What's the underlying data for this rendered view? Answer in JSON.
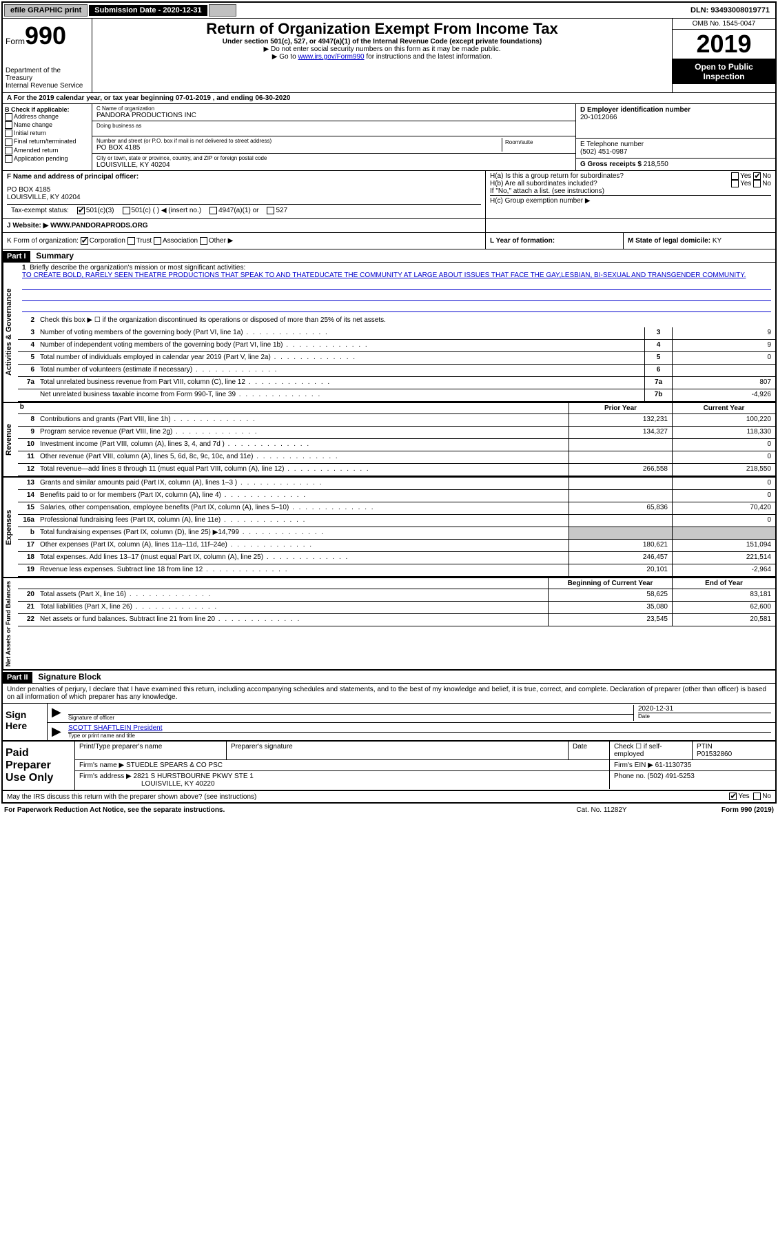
{
  "topbar": {
    "efile": "efile GRAPHIC print",
    "submission_label": "Submission Date - 2020-12-31",
    "dln": "DLN: 93493008019771"
  },
  "header": {
    "form_label": "Form",
    "form_num": "990",
    "dept": "Department of the Treasury\nInternal Revenue Service",
    "title": "Return of Organization Exempt From Income Tax",
    "subtitle": "Under section 501(c), 527, or 4947(a)(1) of the Internal Revenue Code (except private foundations)",
    "note1": "▶ Do not enter social security numbers on this form as it may be made public.",
    "note2_pre": "▶ Go to ",
    "note2_link": "www.irs.gov/Form990",
    "note2_post": " for instructions and the latest information.",
    "omb": "OMB No. 1545-0047",
    "year": "2019",
    "open": "Open to Public Inspection"
  },
  "period": "A For the 2019 calendar year, or tax year beginning 07-01-2019    , and ending 06-30-2020",
  "blockB": {
    "heading": "B Check if applicable:",
    "opts": [
      "Address change",
      "Name change",
      "Initial return",
      "Final return/terminated",
      "Amended return",
      "Application pending"
    ]
  },
  "blockC": {
    "name_lbl": "C Name of organization",
    "name": "PANDORA PRODUCTIONS INC",
    "dba_lbl": "Doing business as",
    "dba": "",
    "addr_lbl": "Number and street (or P.O. box if mail is not delivered to street address)",
    "addr": "PO BOX 4185",
    "room_lbl": "Room/suite",
    "city_lbl": "City or town, state or province, country, and ZIP or foreign postal code",
    "city": "LOUISVILLE, KY  40204"
  },
  "blockD": {
    "lbl": "D Employer identification number",
    "val": "20-1012066"
  },
  "blockE": {
    "lbl": "E Telephone number",
    "val": "(502) 451-0987"
  },
  "blockG": {
    "lbl": "G Gross receipts $",
    "val": "218,550"
  },
  "blockF": {
    "lbl": "F  Name and address of principal officer:",
    "line1": "PO BOX 4185",
    "line2": "LOUISVILLE, KY  40204"
  },
  "blockH": {
    "a": "H(a)  Is this a group return for subordinates?",
    "b": "H(b)  Are all subordinates included?",
    "ifno": "If \"No,\" attach a list. (see instructions)",
    "c": "H(c)  Group exemption number ▶"
  },
  "tax_status": {
    "lbl": "Tax-exempt status:",
    "o1": "501(c)(3)",
    "o2": "501(c) (  ) ◀ (insert no.)",
    "o3": "4947(a)(1) or",
    "o4": "527"
  },
  "blockJ": {
    "lbl": "J    Website: ▶",
    "val": "WWW.PANDORAPRODS.ORG"
  },
  "blockK": {
    "lbl": "K Form of organization:",
    "o1": "Corporation",
    "o2": "Trust",
    "o3": "Association",
    "o4": "Other ▶",
    "l_lbl": "L Year of formation:",
    "l_val": "",
    "m_lbl": "M State of legal domicile:",
    "m_val": "KY"
  },
  "part1": {
    "hdr": "Part I",
    "title": "Summary",
    "l1_lbl": "Briefly describe the organization's mission or most significant activities:",
    "l1_txt": "TO CREATE BOLD, RARELY SEEN THEATRE PRODUCTIONS THAT SPEAK TO AND THATEDUCATE THE COMMUNITY AT LARGE ABOUT ISSUES THAT FACE THE GAY,LESBIAN, BI-SEXUAL AND TRANSGENDER COMMUNITY.",
    "l2": "Check this box ▶ ☐  if the organization discontinued its operations or disposed of more than 25% of its net assets.",
    "rows_gov": [
      {
        "n": "3",
        "d": "Number of voting members of the governing body (Part VI, line 1a)",
        "box": "3",
        "v": "9"
      },
      {
        "n": "4",
        "d": "Number of independent voting members of the governing body (Part VI, line 1b)",
        "box": "4",
        "v": "9"
      },
      {
        "n": "5",
        "d": "Total number of individuals employed in calendar year 2019 (Part V, line 2a)",
        "box": "5",
        "v": "0"
      },
      {
        "n": "6",
        "d": "Total number of volunteers (estimate if necessary)",
        "box": "6",
        "v": ""
      },
      {
        "n": "7a",
        "d": "Total unrelated business revenue from Part VIII, column (C), line 12",
        "box": "7a",
        "v": "807"
      },
      {
        "n": "",
        "d": "Net unrelated business taxable income from Form 990-T, line 39",
        "box": "7b",
        "v": "-4,926"
      }
    ],
    "col_prior": "Prior Year",
    "col_curr": "Current Year",
    "rows_rev": [
      {
        "n": "8",
        "d": "Contributions and grants (Part VIII, line 1h)",
        "p": "132,231",
        "c": "100,220"
      },
      {
        "n": "9",
        "d": "Program service revenue (Part VIII, line 2g)",
        "p": "134,327",
        "c": "118,330"
      },
      {
        "n": "10",
        "d": "Investment income (Part VIII, column (A), lines 3, 4, and 7d )",
        "p": "",
        "c": "0"
      },
      {
        "n": "11",
        "d": "Other revenue (Part VIII, column (A), lines 5, 6d, 8c, 9c, 10c, and 11e)",
        "p": "",
        "c": "0"
      },
      {
        "n": "12",
        "d": "Total revenue—add lines 8 through 11 (must equal Part VIII, column (A), line 12)",
        "p": "266,558",
        "c": "218,550"
      }
    ],
    "rows_exp": [
      {
        "n": "13",
        "d": "Grants and similar amounts paid (Part IX, column (A), lines 1–3 )",
        "p": "",
        "c": "0"
      },
      {
        "n": "14",
        "d": "Benefits paid to or for members (Part IX, column (A), line 4)",
        "p": "",
        "c": "0"
      },
      {
        "n": "15",
        "d": "Salaries, other compensation, employee benefits (Part IX, column (A), lines 5–10)",
        "p": "65,836",
        "c": "70,420"
      },
      {
        "n": "16a",
        "d": "Professional fundraising fees (Part IX, column (A), line 11e)",
        "p": "",
        "c": "0"
      },
      {
        "n": "b",
        "d": "Total fundraising expenses (Part IX, column (D), line 25) ▶14,799",
        "p": "SHADE",
        "c": "SHADE"
      },
      {
        "n": "17",
        "d": "Other expenses (Part IX, column (A), lines 11a–11d, 11f–24e)",
        "p": "180,621",
        "c": "151,094"
      },
      {
        "n": "18",
        "d": "Total expenses. Add lines 13–17 (must equal Part IX, column (A), line 25)",
        "p": "246,457",
        "c": "221,514"
      },
      {
        "n": "19",
        "d": "Revenue less expenses. Subtract line 18 from line 12",
        "p": "20,101",
        "c": "-2,964"
      }
    ],
    "col_beg": "Beginning of Current Year",
    "col_end": "End of Year",
    "rows_net": [
      {
        "n": "20",
        "d": "Total assets (Part X, line 16)",
        "p": "58,625",
        "c": "83,181"
      },
      {
        "n": "21",
        "d": "Total liabilities (Part X, line 26)",
        "p": "35,080",
        "c": "62,600"
      },
      {
        "n": "22",
        "d": "Net assets or fund balances. Subtract line 21 from line 20",
        "p": "23,545",
        "c": "20,581"
      }
    ],
    "side_gov": "Activities & Governance",
    "side_rev": "Revenue",
    "side_exp": "Expenses",
    "side_net": "Net Assets or Fund Balances"
  },
  "part2": {
    "hdr": "Part II",
    "title": "Signature Block",
    "para": "Under penalties of perjury, I declare that I have examined this return, including accompanying schedules and statements, and to the best of my knowledge and belief, it is true, correct, and complete. Declaration of preparer (other than officer) is based on all information of which preparer has any knowledge.",
    "sign_here": "Sign Here",
    "sig_officer_lbl": "Signature of officer",
    "date_lbl": "Date",
    "date_val": "2020-12-31",
    "name_title": "SCOTT SHAFTLEIN  President",
    "name_lbl": "Type or print name and title",
    "paid": "Paid Preparer Use Only",
    "prep_name_lbl": "Print/Type preparer's name",
    "prep_sig_lbl": "Preparer's signature",
    "prep_date_lbl": "Date",
    "self_emp": "Check ☐ if self-employed",
    "ptin_lbl": "PTIN",
    "ptin": "P01532860",
    "firm_name_lbl": "Firm's name    ▶",
    "firm_name": "STUEDLE SPEARS & CO PSC",
    "firm_ein_lbl": "Firm's EIN ▶",
    "firm_ein": "61-1130735",
    "firm_addr_lbl": "Firm's address ▶",
    "firm_addr1": "2821 S HURSTBOURNE PKWY STE 1",
    "firm_addr2": "LOUISVILLE, KY  40220",
    "phone_lbl": "Phone no.",
    "phone": "(502) 491-5253",
    "discuss": "May the IRS discuss this return with the preparer shown above? (see instructions)"
  },
  "footer": {
    "left": "For Paperwork Reduction Act Notice, see the separate instructions.",
    "mid": "Cat. No. 11282Y",
    "right": "Form 990 (2019)"
  },
  "yn": {
    "yes": "Yes",
    "no": "No"
  }
}
